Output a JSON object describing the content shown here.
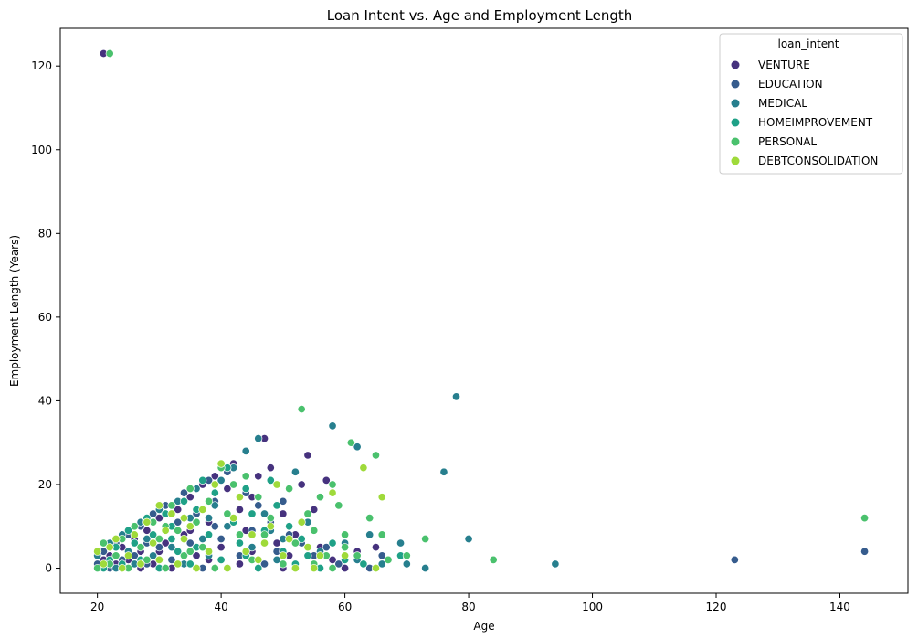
{
  "chart_data": {
    "type": "scatter",
    "title": "Loan Intent vs. Age and Employment Length",
    "xlabel": "Age",
    "ylabel": "Employment Length (Years)",
    "xlim": [
      14,
      151
    ],
    "ylim": [
      -6,
      129
    ],
    "x_ticks": [
      20,
      40,
      60,
      80,
      100,
      120,
      140
    ],
    "y_ticks": [
      0,
      20,
      40,
      60,
      80,
      100,
      120
    ],
    "grid": false,
    "legend_position": "top-right",
    "legend_title": "loan_intent",
    "series": [
      {
        "name": "VENTURE",
        "color": "#46327e",
        "points": [
          [
            21,
            123
          ],
          [
            20,
            0
          ],
          [
            21,
            2
          ],
          [
            22,
            3
          ],
          [
            23,
            1
          ],
          [
            24,
            5
          ],
          [
            25,
            2
          ],
          [
            26,
            7
          ],
          [
            27,
            4
          ],
          [
            28,
            9
          ],
          [
            29,
            1
          ],
          [
            30,
            12
          ],
          [
            31,
            6
          ],
          [
            32,
            0
          ],
          [
            33,
            14
          ],
          [
            34,
            8
          ],
          [
            35,
            17
          ],
          [
            36,
            3
          ],
          [
            37,
            20
          ],
          [
            38,
            11
          ],
          [
            39,
            22
          ],
          [
            40,
            5
          ],
          [
            41,
            19
          ],
          [
            42,
            25
          ],
          [
            43,
            14
          ],
          [
            44,
            9
          ],
          [
            45,
            17
          ],
          [
            46,
            22
          ],
          [
            47,
            31
          ],
          [
            48,
            24
          ],
          [
            49,
            6
          ],
          [
            50,
            13
          ],
          [
            51,
            3
          ],
          [
            52,
            8
          ],
          [
            53,
            20
          ],
          [
            54,
            27
          ],
          [
            55,
            14
          ],
          [
            56,
            5
          ],
          [
            57,
            21
          ],
          [
            58,
            2
          ],
          [
            60,
            0
          ],
          [
            62,
            4
          ],
          [
            65,
            5
          ],
          [
            43,
            1
          ],
          [
            38,
            2
          ],
          [
            35,
            9
          ],
          [
            30,
            4
          ],
          [
            27,
            0
          ],
          [
            45,
            4
          ],
          [
            50,
            0
          ]
        ]
      },
      {
        "name": "EDUCATION",
        "color": "#365c8d",
        "points": [
          [
            20,
            1
          ],
          [
            21,
            4
          ],
          [
            22,
            0
          ],
          [
            23,
            6
          ],
          [
            24,
            2
          ],
          [
            25,
            8
          ],
          [
            26,
            3
          ],
          [
            27,
            10
          ],
          [
            28,
            1
          ],
          [
            29,
            13
          ],
          [
            30,
            5
          ],
          [
            31,
            15
          ],
          [
            32,
            2
          ],
          [
            33,
            11
          ],
          [
            34,
            18
          ],
          [
            35,
            6
          ],
          [
            36,
            13
          ],
          [
            37,
            0
          ],
          [
            38,
            21
          ],
          [
            39,
            16
          ],
          [
            40,
            7
          ],
          [
            41,
            23
          ],
          [
            42,
            12
          ],
          [
            43,
            3
          ],
          [
            44,
            18
          ],
          [
            45,
            9
          ],
          [
            46,
            15
          ],
          [
            47,
            1
          ],
          [
            48,
            11
          ],
          [
            49,
            4
          ],
          [
            50,
            16
          ],
          [
            51,
            8
          ],
          [
            52,
            0
          ],
          [
            53,
            6
          ],
          [
            55,
            3
          ],
          [
            57,
            5
          ],
          [
            59,
            1
          ],
          [
            62,
            2
          ],
          [
            64,
            0
          ],
          [
            66,
            3
          ],
          [
            123,
            2
          ],
          [
            144,
            4
          ],
          [
            39,
            10
          ],
          [
            33,
            4
          ],
          [
            28,
            6
          ]
        ]
      },
      {
        "name": "MEDICAL",
        "color": "#277f8e",
        "points": [
          [
            20,
            3
          ],
          [
            22,
            6
          ],
          [
            23,
            0
          ],
          [
            24,
            8
          ],
          [
            25,
            4
          ],
          [
            26,
            1
          ],
          [
            27,
            11
          ],
          [
            28,
            7
          ],
          [
            29,
            3
          ],
          [
            30,
            14
          ],
          [
            31,
            9
          ],
          [
            32,
            5
          ],
          [
            33,
            16
          ],
          [
            34,
            1
          ],
          [
            35,
            12
          ],
          [
            36,
            19
          ],
          [
            37,
            7
          ],
          [
            38,
            3
          ],
          [
            39,
            15
          ],
          [
            40,
            21
          ],
          [
            41,
            10
          ],
          [
            42,
            24
          ],
          [
            43,
            17
          ],
          [
            44,
            28
          ],
          [
            45,
            5
          ],
          [
            46,
            31
          ],
          [
            47,
            13
          ],
          [
            48,
            9
          ],
          [
            49,
            2
          ],
          [
            50,
            7
          ],
          [
            52,
            23
          ],
          [
            54,
            11
          ],
          [
            56,
            4
          ],
          [
            58,
            34
          ],
          [
            60,
            6
          ],
          [
            62,
            29
          ],
          [
            64,
            8
          ],
          [
            69,
            6
          ],
          [
            70,
            1
          ],
          [
            73,
            0
          ],
          [
            76,
            23
          ],
          [
            78,
            41
          ],
          [
            80,
            7
          ],
          [
            94,
            1
          ],
          [
            62,
            2
          ],
          [
            66,
            1
          ],
          [
            38,
            12
          ]
        ]
      },
      {
        "name": "HOMEIMPROVEMENT",
        "color": "#1fa187",
        "points": [
          [
            21,
            0
          ],
          [
            22,
            2
          ],
          [
            23,
            5
          ],
          [
            24,
            1
          ],
          [
            25,
            9
          ],
          [
            26,
            6
          ],
          [
            27,
            2
          ],
          [
            28,
            12
          ],
          [
            29,
            8
          ],
          [
            30,
            0
          ],
          [
            31,
            13
          ],
          [
            32,
            10
          ],
          [
            33,
            4
          ],
          [
            34,
            16
          ],
          [
            35,
            1
          ],
          [
            36,
            14
          ],
          [
            37,
            21
          ],
          [
            38,
            8
          ],
          [
            39,
            18
          ],
          [
            40,
            2
          ],
          [
            41,
            24
          ],
          [
            42,
            11
          ],
          [
            43,
            6
          ],
          [
            44,
            19
          ],
          [
            45,
            13
          ],
          [
            46,
            0
          ],
          [
            47,
            9
          ],
          [
            48,
            21
          ],
          [
            49,
            15
          ],
          [
            50,
            4
          ],
          [
            51,
            10
          ],
          [
            52,
            1
          ],
          [
            53,
            7
          ],
          [
            54,
            3
          ],
          [
            56,
            0
          ],
          [
            58,
            6
          ],
          [
            60,
            2
          ],
          [
            63,
            1
          ],
          [
            67,
            2
          ],
          [
            69,
            3
          ],
          [
            36,
            5
          ],
          [
            32,
            7
          ],
          [
            44,
            3
          ]
        ]
      },
      {
        "name": "PERSONAL",
        "color": "#4ac16d",
        "points": [
          [
            22,
            123
          ],
          [
            20,
            0
          ],
          [
            21,
            6
          ],
          [
            22,
            1
          ],
          [
            23,
            3
          ],
          [
            24,
            7
          ],
          [
            25,
            0
          ],
          [
            26,
            10
          ],
          [
            27,
            5
          ],
          [
            28,
            2
          ],
          [
            29,
            11
          ],
          [
            30,
            7
          ],
          [
            31,
            0
          ],
          [
            32,
            15
          ],
          [
            33,
            9
          ],
          [
            34,
            3
          ],
          [
            35,
            19
          ],
          [
            36,
            11
          ],
          [
            37,
            5
          ],
          [
            38,
            16
          ],
          [
            39,
            0
          ],
          [
            40,
            24
          ],
          [
            41,
            13
          ],
          [
            42,
            20
          ],
          [
            43,
            8
          ],
          [
            44,
            22
          ],
          [
            45,
            2
          ],
          [
            46,
            17
          ],
          [
            47,
            8
          ],
          [
            48,
            12
          ],
          [
            49,
            20
          ],
          [
            50,
            1
          ],
          [
            51,
            19
          ],
          [
            52,
            6
          ],
          [
            53,
            38
          ],
          [
            54,
            13
          ],
          [
            55,
            9
          ],
          [
            56,
            17
          ],
          [
            57,
            3
          ],
          [
            58,
            20
          ],
          [
            59,
            15
          ],
          [
            60,
            8
          ],
          [
            61,
            30
          ],
          [
            62,
            3
          ],
          [
            64,
            12
          ],
          [
            65,
            27
          ],
          [
            66,
            8
          ],
          [
            67,
            2
          ],
          [
            70,
            3
          ],
          [
            73,
            7
          ],
          [
            84,
            2
          ],
          [
            144,
            12
          ],
          [
            55,
            1
          ],
          [
            58,
            0
          ],
          [
            60,
            5
          ],
          [
            35,
            4
          ],
          [
            31,
            10
          ]
        ]
      },
      {
        "name": "DEBTCONSOLIDATION",
        "color": "#9fda3a",
        "points": [
          [
            20,
            4
          ],
          [
            21,
            1
          ],
          [
            22,
            5
          ],
          [
            23,
            7
          ],
          [
            24,
            0
          ],
          [
            25,
            3
          ],
          [
            26,
            8
          ],
          [
            27,
            1
          ],
          [
            28,
            11
          ],
          [
            29,
            6
          ],
          [
            30,
            2
          ],
          [
            31,
            9
          ],
          [
            32,
            13
          ],
          [
            33,
            1
          ],
          [
            34,
            7
          ],
          [
            35,
            10
          ],
          [
            36,
            0
          ],
          [
            37,
            14
          ],
          [
            38,
            4
          ],
          [
            39,
            20
          ],
          [
            40,
            25
          ],
          [
            41,
            0
          ],
          [
            42,
            12
          ],
          [
            43,
            17
          ],
          [
            44,
            4
          ],
          [
            45,
            8
          ],
          [
            46,
            2
          ],
          [
            47,
            6
          ],
          [
            48,
            10
          ],
          [
            49,
            20
          ],
          [
            50,
            3
          ],
          [
            51,
            7
          ],
          [
            52,
            0
          ],
          [
            53,
            11
          ],
          [
            54,
            5
          ],
          [
            55,
            0
          ],
          [
            56,
            3
          ],
          [
            58,
            18
          ],
          [
            60,
            3
          ],
          [
            63,
            24
          ],
          [
            66,
            17
          ],
          [
            65,
            0
          ],
          [
            34,
            12
          ],
          [
            30,
            15
          ]
        ]
      }
    ]
  }
}
